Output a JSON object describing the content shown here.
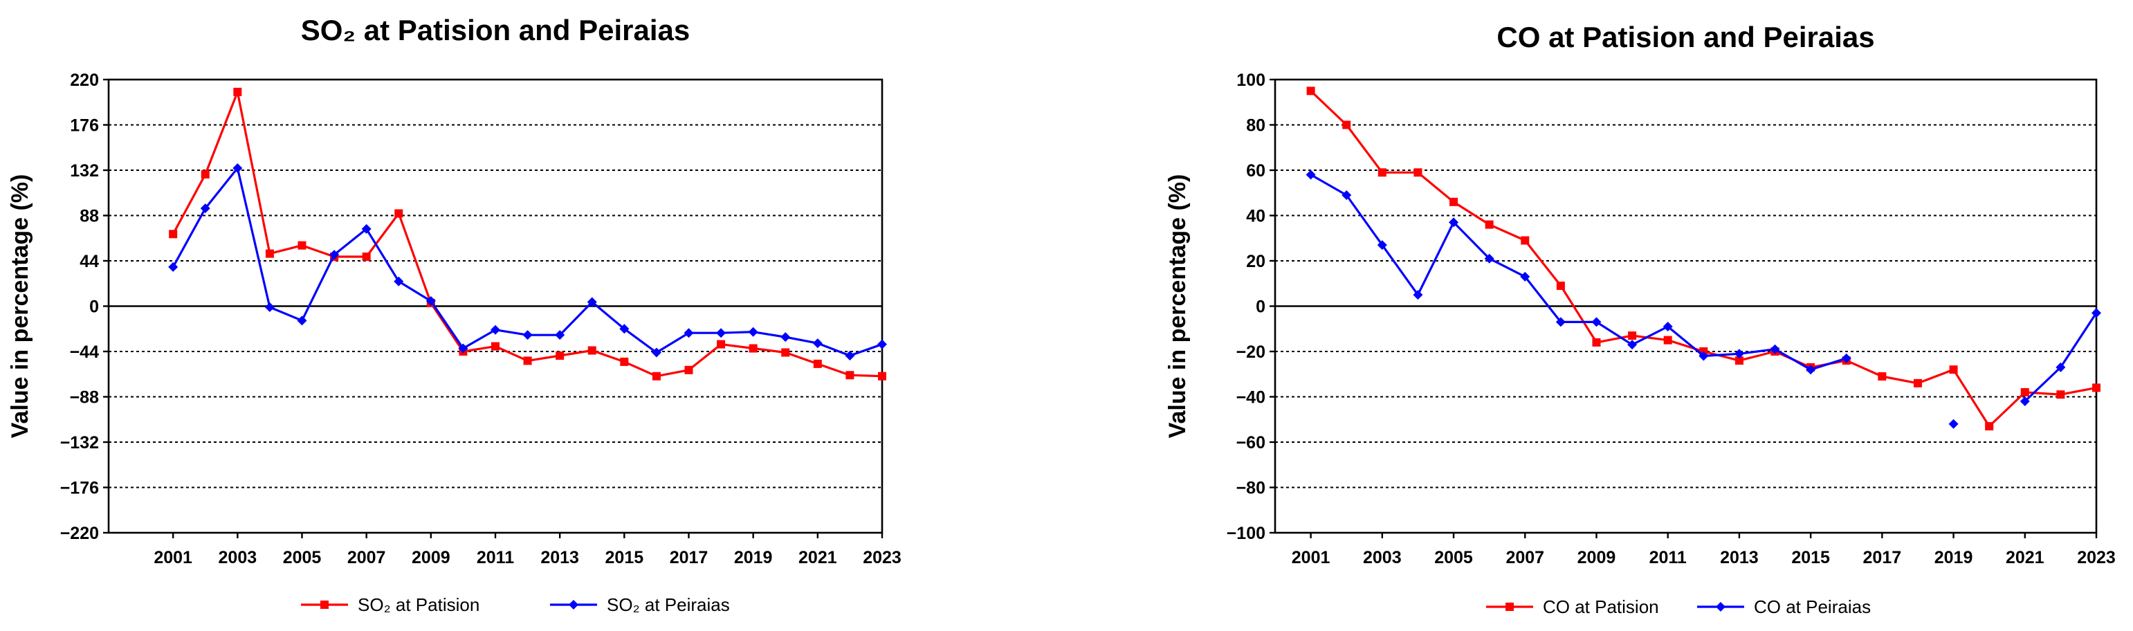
{
  "chart_data": [
    {
      "type": "line",
      "title": "SO₂ at Patision and Peiraias",
      "xlabel": "",
      "ylabel": "Value in percentage (%)",
      "ylim": [
        -220,
        220
      ],
      "yticks": [
        220,
        176,
        132,
        88,
        44,
        0,
        -44,
        -88,
        -132,
        -176,
        -220
      ],
      "ytick_labels": [
        "220",
        "176",
        "132",
        "88",
        "44",
        "0",
        "−44",
        "−88",
        "−132",
        "−176",
        "−220"
      ],
      "xlim": [
        1999,
        2023
      ],
      "xticks": [
        2001,
        2003,
        2005,
        2007,
        2009,
        2011,
        2013,
        2015,
        2017,
        2019,
        2021,
        2023
      ],
      "xtick_labels": [
        "2001",
        "2003",
        "2005",
        "2007",
        "2009",
        "2011",
        "2013",
        "2015",
        "2017",
        "2019",
        "2021",
        "2023"
      ],
      "grid": true,
      "legend_position": "bottom-center",
      "series": [
        {
          "name": "SO₂ at Patision",
          "color": "#ff0000",
          "marker": "square",
          "x": [
            2001,
            2002,
            2003,
            2004,
            2005,
            2006,
            2007,
            2008,
            2009,
            2010,
            2011,
            2012,
            2013,
            2014,
            2015,
            2016,
            2017,
            2018,
            2019,
            2020,
            2021,
            2022,
            2023
          ],
          "values": [
            70,
            128,
            208,
            51,
            59,
            48,
            48,
            90,
            3,
            -44,
            -39,
            -53,
            -48,
            -43,
            -54,
            -68,
            -62,
            -37,
            -41,
            -45,
            -56,
            -67,
            -68
          ]
        },
        {
          "name": "SO₂ at Peiraias",
          "color": "#0000ff",
          "marker": "diamond",
          "x": [
            2001,
            2002,
            2003,
            2004,
            2005,
            2006,
            2007,
            2008,
            2009,
            2010,
            2011,
            2012,
            2013,
            2014,
            2015,
            2016,
            2017,
            2018,
            2019,
            2020,
            2021,
            2022,
            2023
          ],
          "values": [
            38,
            95,
            134,
            -1,
            -14,
            50,
            75,
            24,
            5,
            -41,
            -23,
            -28,
            -28,
            4,
            -22,
            -45,
            -26,
            -26,
            -25,
            -30,
            -36,
            -48,
            -37
          ]
        }
      ]
    },
    {
      "type": "line",
      "title": "CO at Patision and Peiraias",
      "xlabel": "",
      "ylabel": "Value in percentage (%)",
      "ylim": [
        -100,
        100
      ],
      "yticks": [
        100,
        80,
        60,
        40,
        20,
        0,
        -20,
        -40,
        -60,
        -80,
        -100
      ],
      "ytick_labels": [
        "100",
        "80",
        "60",
        "40",
        "20",
        "0",
        "−20",
        "−40",
        "−60",
        "−80",
        "−100"
      ],
      "xlim": [
        2000,
        2023
      ],
      "xticks": [
        2001,
        2003,
        2005,
        2007,
        2009,
        2011,
        2013,
        2015,
        2017,
        2019,
        2021,
        2023
      ],
      "xtick_labels": [
        "2001",
        "2003",
        "2005",
        "2007",
        "2009",
        "2011",
        "2013",
        "2015",
        "2017",
        "2019",
        "2021",
        "2023"
      ],
      "grid": true,
      "legend_position": "bottom-center",
      "series": [
        {
          "name": "CO at Patision",
          "color": "#ff0000",
          "marker": "square",
          "x": [
            2001,
            2002,
            2003,
            2004,
            2005,
            2006,
            2007,
            2008,
            2009,
            2010,
            2011,
            2012,
            2013,
            2014,
            2015,
            2016,
            2017,
            2018,
            2019,
            2020,
            2021,
            2022,
            2023
          ],
          "values": [
            95,
            80,
            59,
            59,
            46,
            36,
            29,
            9,
            -16,
            -13,
            -15,
            -20,
            -24,
            -20,
            -27,
            -24,
            -31,
            -34,
            -28,
            -53,
            -38,
            -39,
            -36
          ]
        },
        {
          "name": "CO at Peiraias",
          "color": "#0000ff",
          "marker": "diamond",
          "x": [
            2001,
            2002,
            2003,
            2004,
            2005,
            2006,
            2007,
            2008,
            2009,
            2010,
            2011,
            2012,
            2013,
            2014,
            2015,
            2016,
            2017,
            2018,
            2019,
            2020,
            2021,
            2022,
            2023
          ],
          "values": [
            58,
            49,
            27,
            5,
            37,
            21,
            13,
            -7,
            -7,
            -17,
            -9,
            -22,
            -21,
            -19,
            -28,
            -23,
            null,
            null,
            -52,
            null,
            -42,
            -27,
            -3
          ]
        }
      ]
    }
  ]
}
